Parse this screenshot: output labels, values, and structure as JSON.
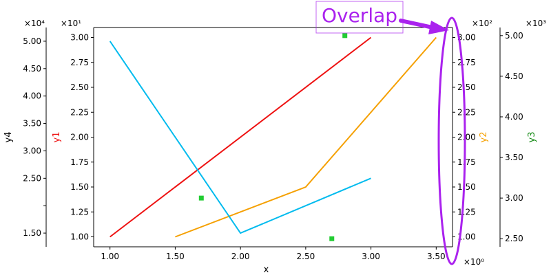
{
  "chart_data": {
    "type": "line",
    "xlabel": "x",
    "x_tick_labels": [
      "1.00",
      "1.50",
      "2.00",
      "2.50",
      "3.00",
      "3.50"
    ],
    "x_offset_text": "×10⁰",
    "xlim": [
      0.875,
      3.625
    ],
    "series": [
      {
        "name": "y1",
        "axis": "y1",
        "color": "#ee1111",
        "style": "line",
        "x": [
          1.0,
          3.0
        ],
        "y": [
          10,
          30
        ]
      },
      {
        "name": "y2",
        "axis": "y2",
        "color": "#f5a000",
        "style": "line",
        "x": [
          1.5,
          2.5,
          3.5
        ],
        "y": [
          100,
          150,
          300
        ]
      },
      {
        "name": "y3",
        "axis": "y3",
        "color": "#22cc33",
        "style": "scatter",
        "x": [
          1.7,
          2.7,
          2.8
        ],
        "y": [
          3000,
          2500,
          5000
        ]
      },
      {
        "name": "y4",
        "axis": "y4",
        "color": "#00bbee",
        "style": "line",
        "x": [
          1.0,
          2.0,
          3.0
        ],
        "y": [
          50000,
          15000,
          25000
        ]
      }
    ],
    "axes": {
      "y1": {
        "label": "y1",
        "label_color": "#ee1111",
        "side": "left",
        "offset_text": "×10¹",
        "ylim": [
          9.0,
          31.0
        ],
        "ticks": [
          10,
          12.5,
          15,
          17.5,
          20,
          22.5,
          25,
          27.5,
          30
        ],
        "tick_labels": [
          "1.00",
          "1.25",
          "1.50",
          "1.75",
          "2.00",
          "2.25",
          "2.50",
          "2.75",
          "3.00"
        ]
      },
      "y2": {
        "label": "y2",
        "label_color": "#f5a000",
        "side": "right",
        "offset_text": "×10²",
        "ylim": [
          90,
          310
        ],
        "ticks": [
          100,
          125,
          150,
          175,
          200,
          225,
          250,
          275,
          300
        ],
        "tick_labels": [
          "1.00",
          "1.25",
          "1.50",
          "1.75",
          "2.00",
          "2.25",
          "2.50",
          "2.75",
          "3.00"
        ]
      },
      "y3": {
        "label": "y3",
        "label_color": "#118811",
        "side": "right-outer",
        "offset_text": "×10³",
        "ylim": [
          2400,
          5100
        ],
        "ticks": [
          2500,
          3000,
          3500,
          4000,
          4500,
          5000
        ],
        "tick_labels": [
          "2.50",
          "3.00",
          "3.50",
          "4.00",
          "4.50",
          "5.00"
        ]
      },
      "y4": {
        "label": "y4",
        "label_color": "#000000",
        "side": "left-outer",
        "offset_text": "×10⁴",
        "ylim": [
          12500,
          52500
        ],
        "ticks": [
          15000,
          20000,
          25000,
          30000,
          35000,
          40000,
          45000,
          50000
        ],
        "tick_labels": [
          "1.50",
          "2.50",
          "3.00",
          "3.50",
          "4.00",
          "4.50",
          "5.00"
        ],
        "tick_label_values": [
          15000,
          25000,
          30000,
          35000,
          40000,
          45000,
          50000
        ]
      }
    },
    "annotation": {
      "text": "Overlap",
      "color": "#aa22ee"
    },
    "grid": false
  }
}
